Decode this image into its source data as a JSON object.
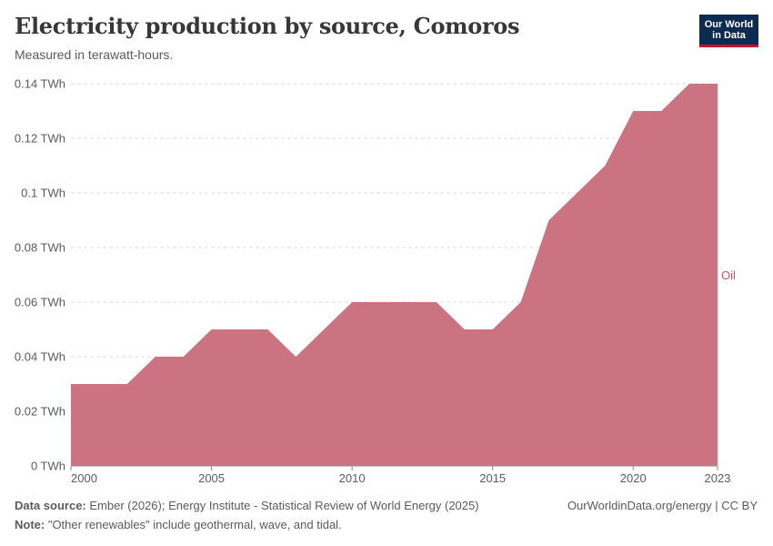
{
  "title": "Electricity production by source, Comoros",
  "subtitle": "Measured in terawatt-hours.",
  "logo": {
    "line1": "Our World",
    "line2": "in Data"
  },
  "footer": {
    "source_label": "Data source:",
    "source_text": " Ember (2026); Energy Institute - Statistical Review of World Energy (2025)",
    "note_label": "Note:",
    "note_text": " \"Other renewables\" include geothermal, wave, and tidal.",
    "credit": "OurWorldinData.org/energy | CC BY"
  },
  "colors": {
    "oil": "#cc7381",
    "oil_label": "#c4566a",
    "grid": "#dddddd",
    "axis": "#5b5b5b"
  },
  "chart_data": {
    "type": "area",
    "title": "Electricity production by source, Comoros",
    "ylabel": "TWh",
    "unit": "TWh",
    "x": [
      2000,
      2001,
      2002,
      2003,
      2004,
      2005,
      2006,
      2007,
      2008,
      2009,
      2010,
      2011,
      2012,
      2013,
      2014,
      2015,
      2016,
      2017,
      2018,
      2019,
      2020,
      2021,
      2022,
      2023
    ],
    "xlim": [
      2000,
      2023
    ],
    "ylim": [
      0,
      0.14
    ],
    "xticks": [
      {
        "value": 2000,
        "label": "2000"
      },
      {
        "value": 2005,
        "label": "2005"
      },
      {
        "value": 2010,
        "label": "2010"
      },
      {
        "value": 2015,
        "label": "2015"
      },
      {
        "value": 2020,
        "label": "2020"
      },
      {
        "value": 2023,
        "label": "2023"
      }
    ],
    "yticks": [
      {
        "value": 0,
        "label": "0 TWh"
      },
      {
        "value": 0.02,
        "label": "0.02 TWh"
      },
      {
        "value": 0.04,
        "label": "0.04 TWh"
      },
      {
        "value": 0.06,
        "label": "0.06 TWh"
      },
      {
        "value": 0.08,
        "label": "0.08 TWh"
      },
      {
        "value": 0.1,
        "label": "0.1 TWh"
      },
      {
        "value": 0.12,
        "label": "0.12 TWh"
      },
      {
        "value": 0.14,
        "label": "0.14 TWh"
      }
    ],
    "series": [
      {
        "name": "Oil",
        "values": [
          0.03,
          0.03,
          0.03,
          0.04,
          0.04,
          0.05,
          0.05,
          0.05,
          0.04,
          0.05,
          0.06,
          0.06,
          0.06,
          0.06,
          0.05,
          0.05,
          0.06,
          0.09,
          0.1,
          0.11,
          0.13,
          0.13,
          0.14,
          0.14
        ]
      }
    ]
  }
}
